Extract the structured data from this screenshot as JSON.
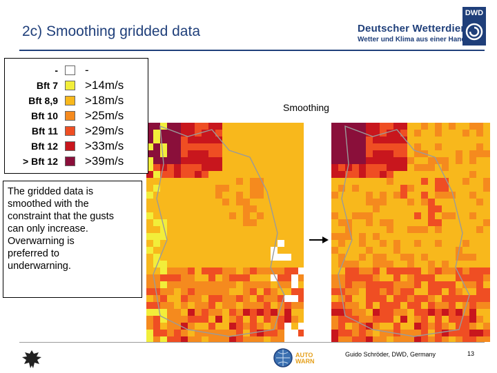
{
  "header": {
    "title": "2c) Smoothing gridded data",
    "brand_line1": "Deutscher Wetterdienst",
    "brand_line2": "Wetter und Klima aus einer Hand",
    "logo_text": "DWD"
  },
  "legend": {
    "items": [
      {
        "label": "-",
        "value": "-",
        "color": "#ffffff"
      },
      {
        "label": "Bft 7",
        "value": ">14m/s",
        "color": "#f2ee3a"
      },
      {
        "label": "Bft 8,9",
        "value": ">18m/s",
        "color": "#f8b81c"
      },
      {
        "label": "Bft 10",
        "value": ">25m/s",
        "color": "#f58a1e"
      },
      {
        "label": "Bft 11",
        "value": ">29m/s",
        "color": "#ef4e23"
      },
      {
        "label": "Bft 12",
        "value": ">33m/s",
        "color": "#c8161d"
      },
      {
        "label": "> Bft 12",
        "value": ">39m/s",
        "color": "#8a0f3a"
      }
    ]
  },
  "smoothing_label": "Smoothing",
  "description": [
    "The gridded data is",
    "smoothed with the",
    "constraint that the gusts",
    "can only increase.",
    "Overwarning is",
    "preferred to",
    "underwarning."
  ],
  "footer": {
    "author": "Guido Schröder, DWD, Germany",
    "page": "13",
    "autowarn_logo": "AUTO WARN"
  },
  "colors": {
    "accent": "#1f3f7a",
    "map_base": "#f8b81c"
  }
}
